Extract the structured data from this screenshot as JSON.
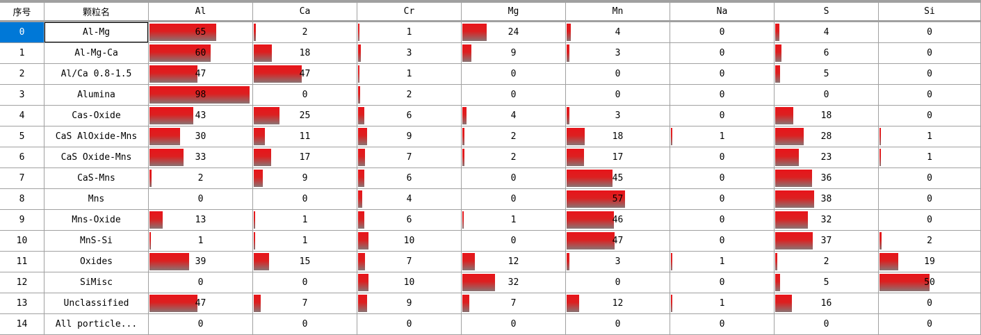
{
  "table": {
    "header": [
      "序号",
      "颗粒名",
      "Al",
      "Ca",
      "Cr",
      "Mg",
      "Mn",
      "Na",
      "S",
      "Si"
    ],
    "rows": [
      [
        0,
        "Al-Mg",
        65,
        2,
        1,
        24,
        4,
        0,
        4,
        0
      ],
      [
        1,
        "Al-Mg-Ca",
        60,
        18,
        3,
        9,
        3,
        0,
        6,
        0
      ],
      [
        2,
        "Al/Ca 0.8-1.5",
        47,
        47,
        1,
        0,
        0,
        0,
        5,
        0
      ],
      [
        3,
        "Alumina",
        98,
        0,
        2,
        0,
        0,
        0,
        0,
        0
      ],
      [
        4,
        "Cas-Oxide",
        43,
        25,
        6,
        4,
        3,
        0,
        18,
        0
      ],
      [
        5,
        "CaS AlOxide-Mns",
        30,
        11,
        9,
        2,
        18,
        1,
        28,
        1
      ],
      [
        6,
        "CaS Oxide-Mns",
        33,
        17,
        7,
        2,
        17,
        0,
        23,
        1
      ],
      [
        7,
        "CaS-Mns",
        2,
        9,
        6,
        0,
        45,
        0,
        36,
        0
      ],
      [
        8,
        "Mns",
        0,
        0,
        4,
        0,
        57,
        0,
        38,
        0
      ],
      [
        9,
        "Mns-Oxide",
        13,
        1,
        6,
        1,
        46,
        0,
        32,
        0
      ],
      [
        10,
        "MnS-Si",
        1,
        1,
        10,
        0,
        47,
        0,
        37,
        2
      ],
      [
        11,
        "Oxides",
        39,
        15,
        7,
        12,
        3,
        1,
        2,
        19
      ],
      [
        12,
        "SiMisc",
        0,
        0,
        10,
        32,
        0,
        0,
        5,
        50
      ],
      [
        13,
        "Unclassified",
        47,
        7,
        9,
        7,
        12,
        1,
        16,
        0
      ],
      [
        14,
        "All porticle...",
        0,
        0,
        0,
        0,
        0,
        0,
        0,
        0
      ]
    ]
  }
}
